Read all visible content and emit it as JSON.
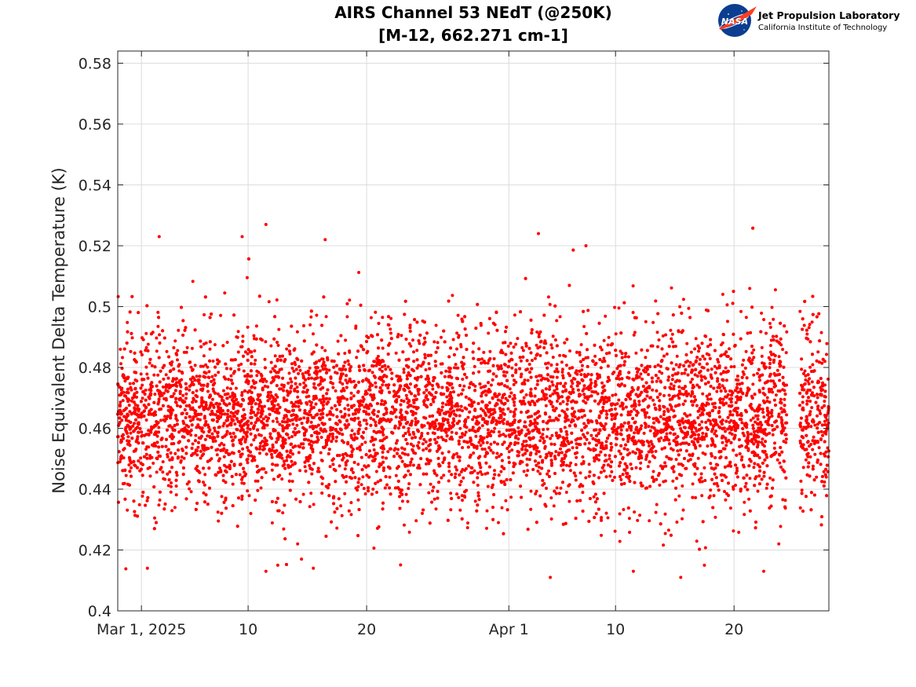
{
  "logo": {
    "emblem_text": "NASA",
    "org_name": "Jet Propulsion Laboratory",
    "org_sub": "California Institute of Technology"
  },
  "chart_data": {
    "type": "scatter",
    "title": "AIRS Channel 53 NEdT (@250K)",
    "subtitle": "[M-12, 662.271 cm-1]",
    "xlabel": "",
    "ylabel": "Noise Equivalent Delta Temperature (K)",
    "x_axis": {
      "kind": "date",
      "range": [
        "2025-02-27",
        "2025-04-28"
      ],
      "ticks": [
        {
          "date": "2025-03-01",
          "label": "Mar 1, 2025"
        },
        {
          "date": "2025-03-10",
          "label": "10"
        },
        {
          "date": "2025-03-20",
          "label": "20"
        },
        {
          "date": "2025-04-01",
          "label": "Apr 1"
        },
        {
          "date": "2025-04-10",
          "label": "10"
        },
        {
          "date": "2025-04-20",
          "label": "20"
        }
      ]
    },
    "y_axis": {
      "range": [
        0.4,
        0.584
      ],
      "ticks": [
        0.4,
        0.42,
        0.44,
        0.46,
        0.48,
        0.5,
        0.52,
        0.54,
        0.56,
        0.58
      ],
      "tick_labels": [
        "0.4",
        "0.42",
        "0.44",
        "0.46",
        "0.48",
        "0.5",
        "0.52",
        "0.54",
        "0.56",
        "0.58"
      ]
    },
    "grid": true,
    "legend": "none",
    "marker_color": "#ff0000",
    "series": [
      {
        "x_range": [
          "2025-02-27",
          "2025-04-28"
        ],
        "gap": [
          "2025-04-24",
          "2025-04-25"
        ],
        "density_per_day": 140,
        "center": 0.464,
        "typical_range": [
          0.43,
          0.505
        ],
        "full_range": [
          0.411,
          0.527
        ],
        "points": [
          {
            "x": "2025-03-02",
            "y": 0.523
          },
          {
            "x": "2025-03-09",
            "y": 0.523
          },
          {
            "x": "2025-03-11",
            "y": 0.527
          },
          {
            "x": "2025-03-16",
            "y": 0.522
          },
          {
            "x": "2025-04-03",
            "y": 0.524
          },
          {
            "x": "2025-04-07",
            "y": 0.52
          },
          {
            "x": "2025-03-01",
            "y": 0.414
          },
          {
            "x": "2025-03-11",
            "y": 0.413
          },
          {
            "x": "2025-03-12",
            "y": 0.415
          },
          {
            "x": "2025-03-15",
            "y": 0.414
          },
          {
            "x": "2025-03-14",
            "y": 0.417
          },
          {
            "x": "2025-04-04",
            "y": 0.411
          },
          {
            "x": "2025-04-11",
            "y": 0.413
          },
          {
            "x": "2025-04-15",
            "y": 0.411
          },
          {
            "x": "2025-04-17",
            "y": 0.415
          },
          {
            "x": "2025-04-22",
            "y": 0.413
          }
        ]
      }
    ]
  }
}
